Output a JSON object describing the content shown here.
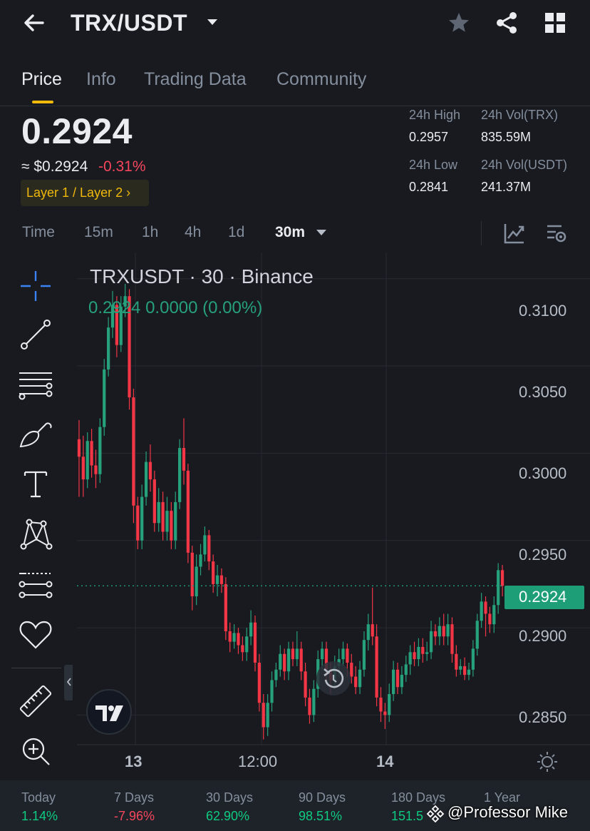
{
  "header": {
    "pair": "TRX/USDT"
  },
  "tabs": [
    "Price",
    "Info",
    "Trading Data",
    "Community"
  ],
  "price": {
    "last": "0.2924",
    "usd": "≈ $0.2924",
    "change": "-0.31%",
    "tag": "Layer 1 / Layer 2 ›"
  },
  "stats": {
    "high_label": "24h High",
    "high_value": "0.2957",
    "low_label": "24h Low",
    "low_value": "0.2841",
    "vol_trx_label": "24h Vol(TRX)",
    "vol_trx_value": "835.59M",
    "vol_usdt_label": "24h Vol(USDT)",
    "vol_usdt_value": "241.37M"
  },
  "intervals": [
    "Time",
    "15m",
    "1h",
    "4h",
    "1d",
    "30m"
  ],
  "chart": {
    "title": "TRXUSDT · 30 · Binance",
    "legend": "0.2924  0.0000 (0.00%)",
    "current_price": "0.2924",
    "y_ticks": [
      "0.3100",
      "0.3050",
      "0.3000",
      "0.2950",
      "0.2900",
      "0.2850"
    ],
    "x_ticks": [
      "13",
      "12:00",
      "14"
    ],
    "up_color": "#26a17b",
    "down_color": "#f23645"
  },
  "chart_data": {
    "type": "candlestick",
    "ylim": [
      0.2833,
      0.3115
    ],
    "y_ticks": [
      0.31,
      0.305,
      0.3,
      0.295,
      0.29,
      0.285
    ],
    "x_ticks": [
      "13",
      "12:00",
      "14"
    ],
    "candles": [
      [
        0.3008,
        0.2998,
        0.3019,
        0.2975
      ],
      [
        0.2998,
        0.2985,
        0.301,
        0.2975
      ],
      [
        0.2985,
        0.3007,
        0.3012,
        0.298
      ],
      [
        0.3007,
        0.2993,
        0.3014,
        0.2986
      ],
      [
        0.2993,
        0.2988,
        0.3002,
        0.298
      ],
      [
        0.2988,
        0.3015,
        0.302,
        0.2983
      ],
      [
        0.3015,
        0.3048,
        0.3054,
        0.301
      ],
      [
        0.3048,
        0.3072,
        0.3078,
        0.3044
      ],
      [
        0.3072,
        0.3085,
        0.3093,
        0.3066
      ],
      [
        0.3085,
        0.3062,
        0.309,
        0.3055
      ],
      [
        0.3062,
        0.3084,
        0.309,
        0.3058
      ],
      [
        0.3084,
        0.309,
        0.3097,
        0.3078
      ],
      [
        0.309,
        0.3032,
        0.3094,
        0.3025
      ],
      [
        0.3032,
        0.297,
        0.3037,
        0.296
      ],
      [
        0.297,
        0.295,
        0.2975,
        0.2945
      ],
      [
        0.295,
        0.2975,
        0.2982,
        0.2945
      ],
      [
        0.2975,
        0.2995,
        0.3001,
        0.297
      ],
      [
        0.2995,
        0.2985,
        0.3005,
        0.2978
      ],
      [
        0.2985,
        0.296,
        0.299,
        0.2955
      ],
      [
        0.296,
        0.2972,
        0.298,
        0.2955
      ],
      [
        0.2972,
        0.2955,
        0.2978,
        0.295
      ],
      [
        0.2955,
        0.2967,
        0.2975,
        0.295
      ],
      [
        0.2967,
        0.295,
        0.2972,
        0.2945
      ],
      [
        0.295,
        0.2972,
        0.2978,
        0.2945
      ],
      [
        0.2972,
        0.3003,
        0.3008,
        0.2968
      ],
      [
        0.3003,
        0.299,
        0.302,
        0.2982
      ],
      [
        0.299,
        0.2943,
        0.2994,
        0.2937
      ],
      [
        0.2943,
        0.2918,
        0.2947,
        0.291
      ],
      [
        0.2918,
        0.2935,
        0.2942,
        0.2913
      ],
      [
        0.2935,
        0.2942,
        0.2948,
        0.293
      ],
      [
        0.2942,
        0.2953,
        0.2958,
        0.2938
      ],
      [
        0.2953,
        0.2938,
        0.2956,
        0.2933
      ],
      [
        0.2938,
        0.2925,
        0.2942,
        0.292
      ],
      [
        0.2925,
        0.293,
        0.2936,
        0.2918
      ],
      [
        0.293,
        0.2925,
        0.2934,
        0.292
      ],
      [
        0.2925,
        0.2898,
        0.2929,
        0.2893
      ],
      [
        0.2898,
        0.2892,
        0.2903,
        0.2886
      ],
      [
        0.2892,
        0.2897,
        0.2902,
        0.2888
      ],
      [
        0.2897,
        0.289,
        0.29,
        0.2885
      ],
      [
        0.289,
        0.2886,
        0.2895,
        0.2881
      ],
      [
        0.2886,
        0.2895,
        0.29,
        0.2881
      ],
      [
        0.2895,
        0.2903,
        0.291,
        0.289
      ],
      [
        0.2903,
        0.288,
        0.2907,
        0.2875
      ],
      [
        0.288,
        0.2857,
        0.2885,
        0.2852
      ],
      [
        0.2857,
        0.2843,
        0.2862,
        0.2836
      ],
      [
        0.2843,
        0.2857,
        0.2862,
        0.2838
      ],
      [
        0.2857,
        0.287,
        0.2875,
        0.2852
      ],
      [
        0.287,
        0.2876,
        0.288,
        0.2866
      ],
      [
        0.2876,
        0.2885,
        0.289,
        0.2872
      ],
      [
        0.2885,
        0.2875,
        0.2888,
        0.287
      ],
      [
        0.2875,
        0.2888,
        0.2892,
        0.287
      ],
      [
        0.2888,
        0.2882,
        0.2892,
        0.2878
      ],
      [
        0.2882,
        0.2888,
        0.2898,
        0.2878
      ],
      [
        0.2888,
        0.2875,
        0.2892,
        0.287
      ],
      [
        0.2875,
        0.286,
        0.288,
        0.2855
      ],
      [
        0.286,
        0.285,
        0.2865,
        0.2845
      ],
      [
        0.285,
        0.2865,
        0.287,
        0.2846
      ],
      [
        0.2865,
        0.2882,
        0.2887,
        0.286
      ],
      [
        0.2882,
        0.2888,
        0.2892,
        0.2876
      ],
      [
        0.2888,
        0.2876,
        0.2892,
        0.287
      ],
      [
        0.2876,
        0.287,
        0.288,
        0.2862
      ],
      [
        0.287,
        0.2878,
        0.2884,
        0.2865
      ],
      [
        0.2878,
        0.2882,
        0.2888,
        0.2872
      ],
      [
        0.2882,
        0.2888,
        0.2892,
        0.2878
      ],
      [
        0.2888,
        0.288,
        0.2891,
        0.2872
      ],
      [
        0.288,
        0.2872,
        0.2885,
        0.2868
      ],
      [
        0.2872,
        0.2866,
        0.2878,
        0.2862
      ],
      [
        0.2866,
        0.2876,
        0.2881,
        0.2862
      ],
      [
        0.2876,
        0.2893,
        0.2898,
        0.2872
      ],
      [
        0.2893,
        0.2902,
        0.2908,
        0.2887
      ],
      [
        0.2902,
        0.2895,
        0.2923,
        0.289
      ],
      [
        0.2895,
        0.286,
        0.2902,
        0.2855
      ],
      [
        0.286,
        0.2852,
        0.2866,
        0.2846
      ],
      [
        0.2852,
        0.285,
        0.2857,
        0.2842
      ],
      [
        0.285,
        0.2862,
        0.2868,
        0.2846
      ],
      [
        0.2862,
        0.2876,
        0.2881,
        0.2858
      ],
      [
        0.2876,
        0.2866,
        0.288,
        0.2862
      ],
      [
        0.2866,
        0.2873,
        0.2878,
        0.2862
      ],
      [
        0.2873,
        0.2879,
        0.2884,
        0.2869
      ],
      [
        0.2879,
        0.2886,
        0.289,
        0.2873
      ],
      [
        0.2886,
        0.2882,
        0.2892,
        0.2878
      ],
      [
        0.2882,
        0.2889,
        0.2894,
        0.2878
      ],
      [
        0.2889,
        0.2885,
        0.2894,
        0.288
      ],
      [
        0.2885,
        0.2886,
        0.2892,
        0.2881
      ],
      [
        0.2886,
        0.2898,
        0.2904,
        0.2882
      ],
      [
        0.2898,
        0.2895,
        0.2902,
        0.289
      ],
      [
        0.2895,
        0.2901,
        0.2906,
        0.289
      ],
      [
        0.2901,
        0.2895,
        0.2908,
        0.289
      ],
      [
        0.2895,
        0.2902,
        0.2908,
        0.289
      ],
      [
        0.2902,
        0.2885,
        0.2906,
        0.288
      ],
      [
        0.2885,
        0.2876,
        0.289,
        0.2872
      ],
      [
        0.2876,
        0.2878,
        0.2882,
        0.2873
      ],
      [
        0.2878,
        0.2873,
        0.2883,
        0.287
      ],
      [
        0.2873,
        0.2876,
        0.288,
        0.287
      ],
      [
        0.2876,
        0.2888,
        0.2893,
        0.2872
      ],
      [
        0.2888,
        0.2904,
        0.2908,
        0.2884
      ],
      [
        0.2904,
        0.2915,
        0.292,
        0.29
      ],
      [
        0.2915,
        0.2908,
        0.2918,
        0.2895
      ],
      [
        0.2908,
        0.2902,
        0.2912,
        0.2897
      ],
      [
        0.2902,
        0.2913,
        0.2918,
        0.2897
      ],
      [
        0.2913,
        0.2933,
        0.2937,
        0.2908
      ],
      [
        0.2933,
        0.2924,
        0.2936,
        0.2918
      ]
    ]
  },
  "performance": [
    {
      "label": "Today",
      "value": "1.14%",
      "dir": "pos"
    },
    {
      "label": "7 Days",
      "value": "-7.96%",
      "dir": "neg"
    },
    {
      "label": "30 Days",
      "value": "62.90%",
      "dir": "pos"
    },
    {
      "label": "90 Days",
      "value": "98.51%",
      "dir": "pos"
    },
    {
      "label": "180 Days",
      "value": "151.5",
      "dir": "pos"
    },
    {
      "label": "1 Year",
      "value": "",
      "dir": "pos"
    }
  ],
  "watermark": "@Professor Mike"
}
